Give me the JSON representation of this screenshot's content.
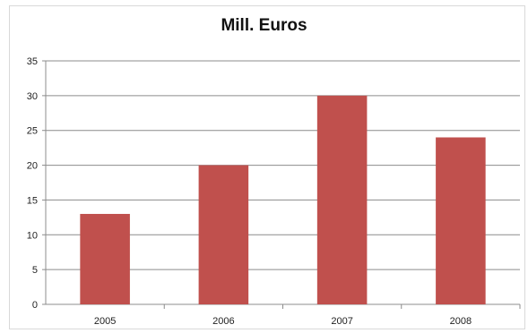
{
  "chart_data": {
    "type": "bar",
    "title": "Mill. Euros",
    "categories": [
      "2005",
      "2006",
      "2007",
      "2008"
    ],
    "values": [
      13,
      20,
      30,
      24
    ],
    "xlabel": "",
    "ylabel": "",
    "ylim": [
      0,
      35
    ],
    "yticks": [
      0,
      5,
      10,
      15,
      20,
      25,
      30,
      35
    ],
    "grid": true,
    "legend": "none",
    "bar_color": "#c0504d"
  }
}
